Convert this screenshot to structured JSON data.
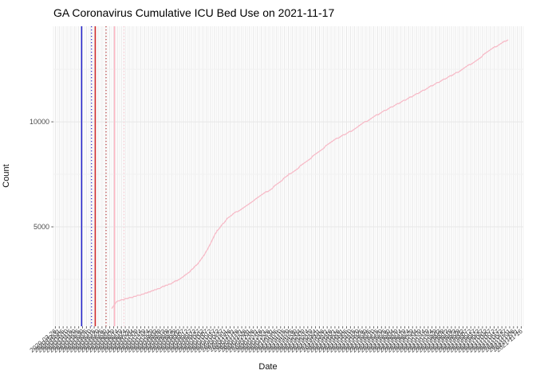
{
  "title": "GA Coronavirus Cumulative ICU Bed Use on 2021-11-17",
  "chart_data": {
    "type": "line",
    "title": "GA Coronavirus Cumulative ICU Bed Use on 2021-11-17",
    "xlabel": "Date",
    "ylabel": "Count",
    "ylim": [
      265,
      14550
    ],
    "y_major_ticks": [
      5000,
      10000
    ],
    "y_tick_labels": [
      "5000",
      "10000"
    ],
    "y_minor_gridlines": [
      2500,
      7500,
      12500
    ],
    "grid": "on",
    "legend": "none",
    "background": "#ffffff",
    "colors": {
      "series": "#f7bac7",
      "grid_major": "#e7e7e7",
      "grid_minor": "#f1f1f1",
      "tick_text": "#4d4d4d",
      "axis_text": "#111111",
      "tick_mark": "#666666"
    },
    "x_tick_labels": [
      "2020-03-26",
      "2020-03-31",
      "2020-04-05",
      "2020-04-10",
      "2020-04-15",
      "2020-04-20",
      "2020-04-25",
      "2020-04-30",
      "2020-05-05",
      "2020-05-10",
      "2020-05-15",
      "2020-05-20",
      "2020-05-25",
      "2020-05-30",
      "2020-06-04",
      "2020-06-09",
      "2020-06-14",
      "2020-06-19",
      "2020-06-24",
      "2020-06-29",
      "2020-07-04",
      "2020-07-09",
      "2020-07-14",
      "2020-07-19",
      "2020-07-24",
      "2020-07-29",
      "2020-08-03",
      "2020-08-08",
      "2020-08-13",
      "2020-08-18",
      "2020-08-23",
      "2020-08-28",
      "2020-09-02",
      "2020-09-07",
      "2020-09-12",
      "2020-09-17",
      "2020-09-22",
      "2020-09-27",
      "2020-10-02",
      "2020-10-07",
      "2020-10-12",
      "2020-10-17",
      "2020-10-22",
      "2020-10-27",
      "2020-11-01",
      "2020-11-06",
      "2020-11-11",
      "2020-11-16",
      "2020-11-21",
      "2020-11-26",
      "2020-12-01",
      "2020-12-06",
      "2020-12-11",
      "2020-12-16",
      "2020-12-21",
      "2020-12-26",
      "2020-12-31",
      "2021-01-05",
      "2021-01-10",
      "2021-01-15",
      "2021-01-20",
      "2021-01-25",
      "2021-01-30",
      "2021-02-04",
      "2021-02-09",
      "2021-02-14",
      "2021-02-19",
      "2021-02-24",
      "2021-03-01",
      "2021-03-06",
      "2021-03-11",
      "2021-03-16",
      "2021-03-21",
      "2021-03-26",
      "2021-03-31",
      "2021-04-05",
      "2021-04-10",
      "2021-04-15",
      "2021-04-20",
      "2021-04-25",
      "2021-04-30",
      "2021-05-05",
      "2021-05-10",
      "2021-05-15",
      "2021-05-20",
      "2021-05-25",
      "2021-05-30",
      "2021-06-04",
      "2021-06-09",
      "2021-06-14",
      "2021-06-19",
      "2021-06-24",
      "2021-06-29",
      "2021-07-04",
      "2021-07-09",
      "2021-07-14",
      "2021-07-19",
      "2021-07-24",
      "2021-07-29",
      "2021-08-03",
      "2021-08-08",
      "2021-08-13",
      "2021-08-18",
      "2021-08-23",
      "2021-08-28",
      "2021-09-02",
      "2021-09-07",
      "2021-09-12",
      "2021-09-17",
      "2021-09-22",
      "2021-09-27",
      "2021-10-02",
      "2021-10-07",
      "2021-10-12",
      "2021-10-17",
      "2021-10-22",
      "2021-10-27",
      "2021-11-01",
      "2021-11-06",
      "2021-11-11",
      "2021-11-16"
    ],
    "series": [
      {
        "name": "cumulative-icu-bed-use",
        "color": "#f7bac7",
        "points": [
          [
            0.124,
            1100
          ],
          [
            0.134,
            1430
          ],
          [
            0.146,
            1520
          ],
          [
            0.158,
            1590
          ],
          [
            0.172,
            1680
          ],
          [
            0.185,
            1760
          ],
          [
            0.199,
            1860
          ],
          [
            0.212,
            1960
          ],
          [
            0.226,
            2080
          ],
          [
            0.239,
            2200
          ],
          [
            0.253,
            2330
          ],
          [
            0.267,
            2500
          ],
          [
            0.28,
            2700
          ],
          [
            0.294,
            2950
          ],
          [
            0.307,
            3250
          ],
          [
            0.321,
            3650
          ],
          [
            0.334,
            4200
          ],
          [
            0.348,
            4800
          ],
          [
            0.36,
            5120
          ],
          [
            0.37,
            5400
          ],
          [
            0.382,
            5600
          ],
          [
            0.396,
            5800
          ],
          [
            0.413,
            6050
          ],
          [
            0.429,
            6300
          ],
          [
            0.446,
            6550
          ],
          [
            0.463,
            6800
          ],
          [
            0.48,
            7100
          ],
          [
            0.501,
            7500
          ],
          [
            0.518,
            7750
          ],
          [
            0.535,
            8050
          ],
          [
            0.552,
            8350
          ],
          [
            0.569,
            8650
          ],
          [
            0.586,
            8950
          ],
          [
            0.603,
            9200
          ],
          [
            0.62,
            9400
          ],
          [
            0.637,
            9600
          ],
          [
            0.65,
            9800
          ],
          [
            0.664,
            10000
          ],
          [
            0.681,
            10220
          ],
          [
            0.698,
            10450
          ],
          [
            0.715,
            10650
          ],
          [
            0.732,
            10850
          ],
          [
            0.749,
            11050
          ],
          [
            0.766,
            11250
          ],
          [
            0.783,
            11450
          ],
          [
            0.8,
            11650
          ],
          [
            0.817,
            11850
          ],
          [
            0.834,
            12050
          ],
          [
            0.851,
            12250
          ],
          [
            0.871,
            12500
          ],
          [
            0.888,
            12750
          ],
          [
            0.905,
            13000
          ],
          [
            0.922,
            13300
          ],
          [
            0.939,
            13550
          ],
          [
            0.953,
            13750
          ],
          [
            0.968,
            13900
          ]
        ]
      }
    ],
    "reference_lines": [
      {
        "name": "reference-line-blue-solid",
        "color": "#2424cc",
        "style": "solid",
        "x_frac": 0.06
      },
      {
        "name": "reference-line-blue-dotted",
        "color": "#2424cc",
        "style": "dotted",
        "x_frac": 0.081
      },
      {
        "name": "reference-line-red-solid",
        "color": "#d42a2a",
        "style": "solid",
        "x_frac": 0.089
      },
      {
        "name": "reference-line-red-dotted",
        "color": "#b03030",
        "style": "dotted",
        "x_frac": 0.112
      },
      {
        "name": "reference-line-pink-solid",
        "color": "#ffb6c4",
        "style": "solid",
        "x_frac": 0.13
      },
      {
        "name": "reference-line-pink-dotted",
        "color": "#ffccd5",
        "style": "dotted",
        "x_frac": 0.15
      }
    ]
  }
}
